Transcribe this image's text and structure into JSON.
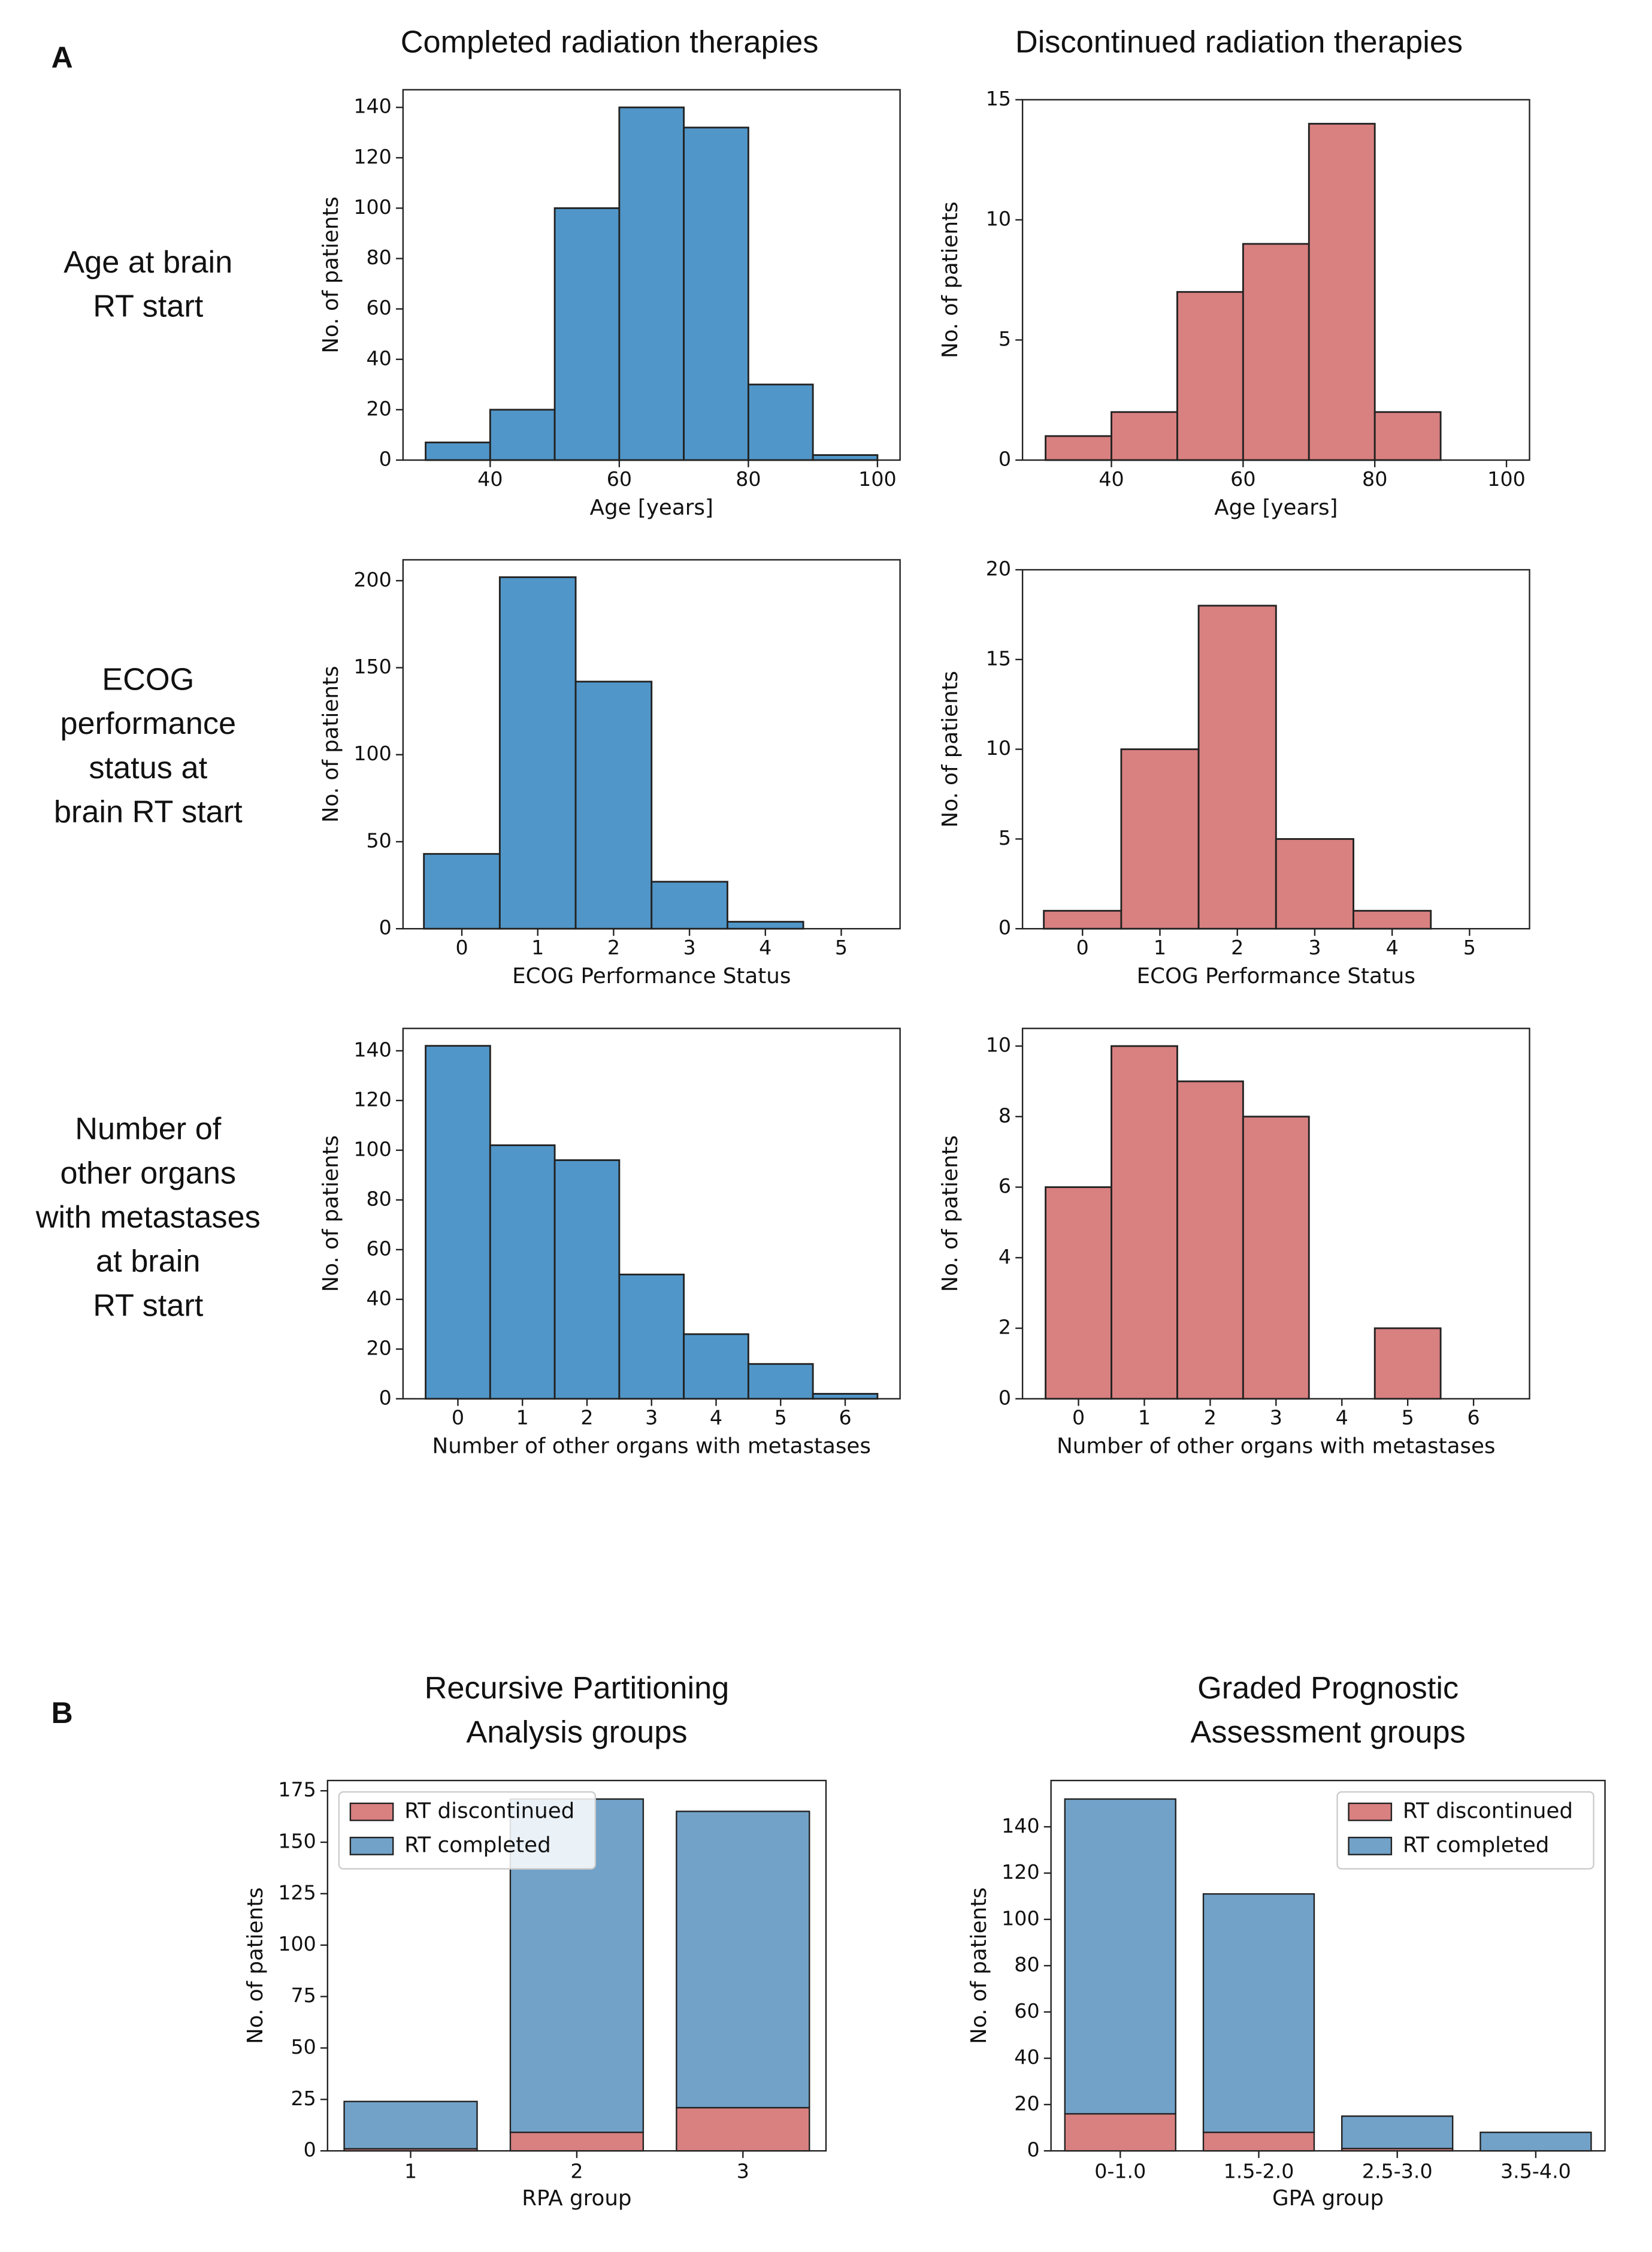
{
  "panel_labels": [
    "A",
    "B"
  ],
  "column_titles": [
    "Completed radiation therapies",
    "Discontinued radiation therapies"
  ],
  "row_labels": [
    [
      "Age at brain",
      "RT start"
    ],
    [
      "ECOG",
      "performance",
      "status at",
      "brain RT start"
    ],
    [
      "Number of",
      "other organs",
      "with metastases",
      "at brain",
      "RT start"
    ]
  ],
  "chart_data": [
    {
      "type": "histogram",
      "bins": [
        30,
        40,
        50,
        60,
        70,
        80,
        90,
        100
      ],
      "values": [
        7,
        20,
        100,
        140,
        132,
        30,
        2
      ],
      "color": "#5196c8",
      "xlabel": "Age [years]",
      "ylabel": "No. of patients",
      "xlim": [
        26.5,
        103.5
      ],
      "xticks": [
        40,
        60,
        80,
        100
      ],
      "ylim": [
        0,
        147
      ],
      "yticks": [
        0,
        20,
        40,
        60,
        80,
        100,
        120,
        140
      ]
    },
    {
      "type": "histogram",
      "bins": [
        30,
        40,
        50,
        60,
        70,
        80,
        90,
        100
      ],
      "values": [
        1,
        2,
        7,
        9,
        14,
        2,
        0
      ],
      "color": "#d98080",
      "xlabel": "Age [years]",
      "ylabel": "No. of patients",
      "xlim": [
        26.5,
        103.5
      ],
      "xticks": [
        40,
        60,
        80,
        100
      ],
      "ylim": [
        0,
        15
      ],
      "yticks": [
        0,
        5,
        10,
        15
      ]
    },
    {
      "type": "histogram",
      "bins": [
        -0.5,
        0.5,
        1.5,
        2.5,
        3.5,
        4.5,
        5.5
      ],
      "values": [
        43,
        202,
        142,
        27,
        4,
        0
      ],
      "color": "#5196c8",
      "xlabel": "ECOG Performance Status",
      "ylabel": "No. of patients",
      "xlim": [
        -0.775,
        5.775
      ],
      "xticks": [
        0,
        1,
        2,
        3,
        4,
        5
      ],
      "ylim": [
        0,
        212
      ],
      "yticks": [
        0,
        50,
        100,
        150,
        200
      ]
    },
    {
      "type": "histogram",
      "bins": [
        -0.5,
        0.5,
        1.5,
        2.5,
        3.5,
        4.5,
        5.5
      ],
      "values": [
        1,
        10,
        18,
        5,
        1,
        0
      ],
      "color": "#d98080",
      "xlabel": "ECOG Performance Status",
      "ylabel": "No. of patients",
      "xlim": [
        -0.775,
        5.775
      ],
      "xticks": [
        0,
        1,
        2,
        3,
        4,
        5
      ],
      "ylim": [
        0,
        20
      ],
      "yticks": [
        0,
        5,
        10,
        15,
        20
      ]
    },
    {
      "type": "histogram",
      "bins": [
        -0.5,
        0.5,
        1.5,
        2.5,
        3.5,
        4.5,
        5.5,
        6.5
      ],
      "values": [
        142,
        102,
        96,
        50,
        26,
        14,
        2
      ],
      "color": "#5196c8",
      "xlabel": "Number of other organs with metastases",
      "ylabel": "No. of patients",
      "xlim": [
        -0.85,
        6.85
      ],
      "xticks": [
        0,
        1,
        2,
        3,
        4,
        5,
        6
      ],
      "ylim": [
        0,
        149
      ],
      "yticks": [
        0,
        20,
        40,
        60,
        80,
        100,
        120,
        140
      ]
    },
    {
      "type": "histogram",
      "bins": [
        -0.5,
        0.5,
        1.5,
        2.5,
        3.5,
        4.5,
        5.5,
        6.5
      ],
      "values": [
        6,
        10,
        9,
        8,
        0,
        2,
        0
      ],
      "color": "#d98080",
      "xlabel": "Number of other organs with metastases",
      "ylabel": "No. of patients",
      "xlim": [
        -0.85,
        6.85
      ],
      "xticks": [
        0,
        1,
        2,
        3,
        4,
        5,
        6
      ],
      "ylim": [
        0,
        10.5
      ],
      "yticks": [
        0,
        2,
        4,
        6,
        8,
        10
      ]
    },
    {
      "type": "bar",
      "stacked": true,
      "title": [
        "Recursive Partitioning",
        "Analysis groups"
      ],
      "categories": [
        "1",
        "2",
        "3"
      ],
      "series": [
        {
          "name": "RT discontinued",
          "color": "#d98080",
          "values": [
            1,
            9,
            21
          ]
        },
        {
          "name": "RT completed",
          "color": "#72a2c8",
          "values": [
            23,
            162,
            144
          ]
        }
      ],
      "xlabel": "RPA group",
      "ylabel": "No. of patients",
      "ylim": [
        0,
        180
      ],
      "yticks": [
        0,
        25,
        50,
        75,
        100,
        125,
        150,
        175
      ],
      "legend": "upper left"
    },
    {
      "type": "bar",
      "stacked": true,
      "title": [
        "Graded Prognostic",
        "Assessment groups"
      ],
      "categories": [
        "0-1.0",
        "1.5-2.0",
        "2.5-3.0",
        "3.5-4.0"
      ],
      "series": [
        {
          "name": "RT discontinued",
          "color": "#d98080",
          "values": [
            16,
            8,
            1,
            0
          ]
        },
        {
          "name": "RT completed",
          "color": "#72a2c8",
          "values": [
            136,
            103,
            14,
            8
          ]
        }
      ],
      "xlabel": "GPA group",
      "ylabel": "No. of patients",
      "ylim": [
        0,
        160
      ],
      "yticks": [
        0,
        20,
        40,
        60,
        80,
        100,
        120,
        140
      ],
      "legend": "upper right"
    }
  ]
}
